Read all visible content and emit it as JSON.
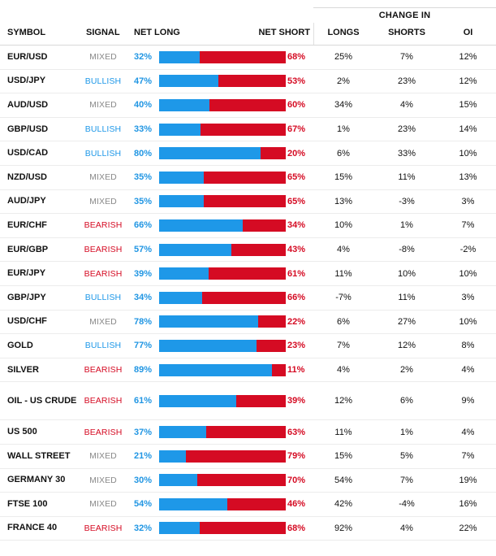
{
  "header": {
    "change_in": "CHANGE IN",
    "symbol": "SYMBOL",
    "signal": "SIGNAL",
    "net_long": "NET LONG",
    "net_short": "NET SHORT",
    "longs": "LONGS",
    "shorts": "SHORTS",
    "oi": "OI"
  },
  "colors": {
    "long": "#1e98e8",
    "short": "#d50b23",
    "mixed": "#8a8a8a"
  },
  "rows": [
    {
      "symbol": "EUR/USD",
      "signal": "MIXED",
      "net_long": "32%",
      "net_short": "68%",
      "long_pct": 32,
      "longs": "25%",
      "shorts": "7%",
      "oi": "12%"
    },
    {
      "symbol": "USD/JPY",
      "signal": "BULLISH",
      "net_long": "47%",
      "net_short": "53%",
      "long_pct": 47,
      "longs": "2%",
      "shorts": "23%",
      "oi": "12%"
    },
    {
      "symbol": "AUD/USD",
      "signal": "MIXED",
      "net_long": "40%",
      "net_short": "60%",
      "long_pct": 40,
      "longs": "34%",
      "shorts": "4%",
      "oi": "15%"
    },
    {
      "symbol": "GBP/USD",
      "signal": "BULLISH",
      "net_long": "33%",
      "net_short": "67%",
      "long_pct": 33,
      "longs": "1%",
      "shorts": "23%",
      "oi": "14%"
    },
    {
      "symbol": "USD/CAD",
      "signal": "BULLISH",
      "net_long": "80%",
      "net_short": "20%",
      "long_pct": 80,
      "longs": "6%",
      "shorts": "33%",
      "oi": "10%"
    },
    {
      "symbol": "NZD/USD",
      "signal": "MIXED",
      "net_long": "35%",
      "net_short": "65%",
      "long_pct": 35,
      "longs": "15%",
      "shorts": "11%",
      "oi": "13%"
    },
    {
      "symbol": "AUD/JPY",
      "signal": "MIXED",
      "net_long": "35%",
      "net_short": "65%",
      "long_pct": 35,
      "longs": "13%",
      "shorts": "-3%",
      "oi": "3%"
    },
    {
      "symbol": "EUR/CHF",
      "signal": "BEARISH",
      "net_long": "66%",
      "net_short": "34%",
      "long_pct": 66,
      "longs": "10%",
      "shorts": "1%",
      "oi": "7%"
    },
    {
      "symbol": "EUR/GBP",
      "signal": "BEARISH",
      "net_long": "57%",
      "net_short": "43%",
      "long_pct": 57,
      "longs": "4%",
      "shorts": "-8%",
      "oi": "-2%"
    },
    {
      "symbol": "EUR/JPY",
      "signal": "BEARISH",
      "net_long": "39%",
      "net_short": "61%",
      "long_pct": 39,
      "longs": "11%",
      "shorts": "10%",
      "oi": "10%"
    },
    {
      "symbol": "GBP/JPY",
      "signal": "BULLISH",
      "net_long": "34%",
      "net_short": "66%",
      "long_pct": 34,
      "longs": "-7%",
      "shorts": "11%",
      "oi": "3%"
    },
    {
      "symbol": "USD/CHF",
      "signal": "MIXED",
      "net_long": "78%",
      "net_short": "22%",
      "long_pct": 78,
      "longs": "6%",
      "shorts": "27%",
      "oi": "10%"
    },
    {
      "symbol": "GOLD",
      "signal": "BULLISH",
      "net_long": "77%",
      "net_short": "23%",
      "long_pct": 77,
      "longs": "7%",
      "shorts": "12%",
      "oi": "8%"
    },
    {
      "symbol": "SILVER",
      "signal": "BEARISH",
      "net_long": "89%",
      "net_short": "11%",
      "long_pct": 89,
      "longs": "4%",
      "shorts": "2%",
      "oi": "4%"
    },
    {
      "symbol": "OIL - US CRUDE",
      "signal": "BEARISH",
      "net_long": "61%",
      "net_short": "39%",
      "long_pct": 61,
      "longs": "12%",
      "shorts": "6%",
      "oi": "9%",
      "tall": true
    },
    {
      "symbol": "US 500",
      "signal": "BEARISH",
      "net_long": "37%",
      "net_short": "63%",
      "long_pct": 37,
      "longs": "11%",
      "shorts": "1%",
      "oi": "4%"
    },
    {
      "symbol": "WALL STREET",
      "signal": "MIXED",
      "net_long": "21%",
      "net_short": "79%",
      "long_pct": 21,
      "longs": "15%",
      "shorts": "5%",
      "oi": "7%"
    },
    {
      "symbol": "GERMANY 30",
      "signal": "MIXED",
      "net_long": "30%",
      "net_short": "70%",
      "long_pct": 30,
      "longs": "54%",
      "shorts": "7%",
      "oi": "19%"
    },
    {
      "symbol": "FTSE 100",
      "signal": "MIXED",
      "net_long": "54%",
      "net_short": "46%",
      "long_pct": 54,
      "longs": "42%",
      "shorts": "-4%",
      "oi": "16%"
    },
    {
      "symbol": "FRANCE 40",
      "signal": "BEARISH",
      "net_long": "32%",
      "net_short": "68%",
      "long_pct": 32,
      "longs": "92%",
      "shorts": "4%",
      "oi": "22%"
    }
  ]
}
